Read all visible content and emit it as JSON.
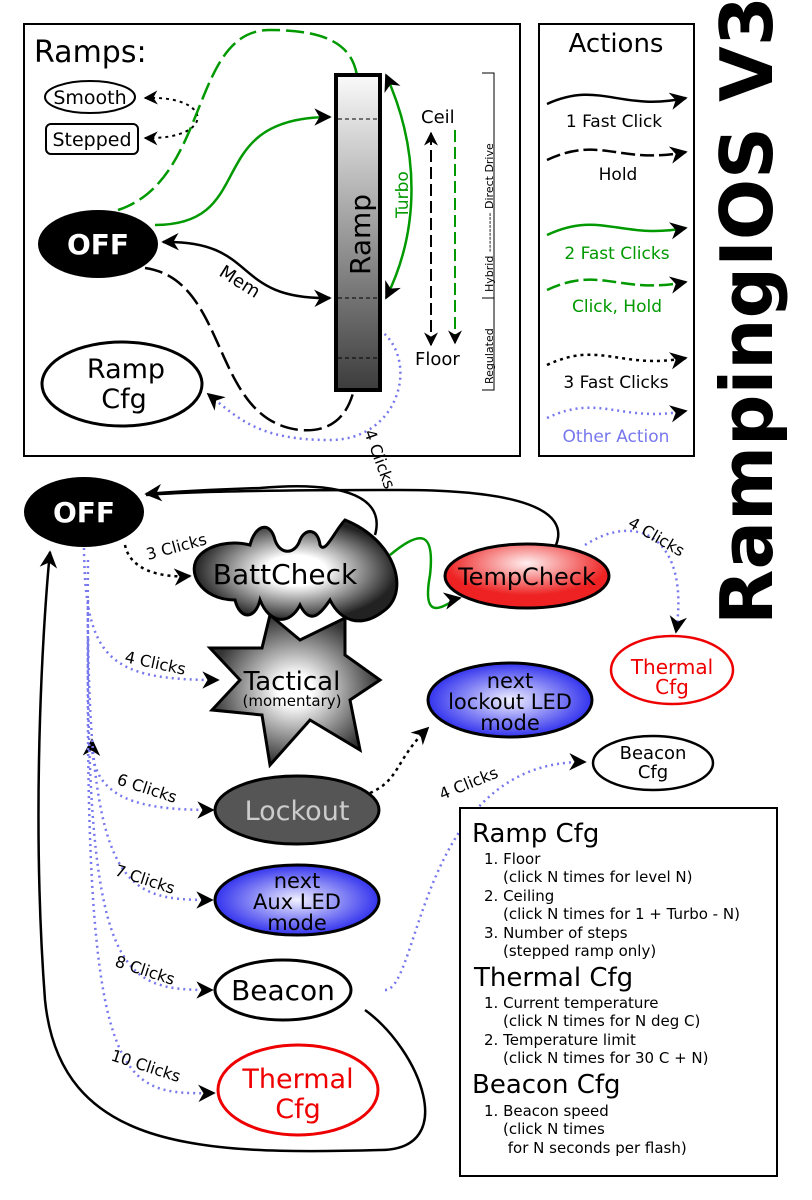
{
  "title": "RampingIOS V3",
  "ramps_panel": {
    "heading": "Ramps:",
    "smooth": "Smooth",
    "stepped": "Stepped",
    "off": "OFF",
    "ramp_cfg_line1": "Ramp",
    "ramp_cfg_line2": "Cfg",
    "ramp": "Ramp",
    "turbo": "Turbo",
    "ceil": "Ceil",
    "floor": "Floor",
    "mem": "Mem",
    "four_clicks": "4 Clicks",
    "regulated": "Regulated",
    "hybrid_direct": "Hybrid ---------- Direct Drive"
  },
  "actions_panel": {
    "heading": "Actions",
    "items": [
      {
        "label": "1 Fast Click",
        "style": "solid",
        "color": "#000000"
      },
      {
        "label": "Hold",
        "style": "dashed",
        "color": "#000000"
      },
      {
        "label": "2 Fast Clicks",
        "style": "solid",
        "color": "#009900"
      },
      {
        "label": "Click, Hold",
        "style": "dashed",
        "color": "#009900"
      },
      {
        "label": "3 Fast Clicks",
        "style": "dotted",
        "color": "#000000"
      },
      {
        "label": "Other Action",
        "style": "dotted",
        "color": "#7777ee"
      }
    ]
  },
  "graph": {
    "off": "OFF",
    "battcheck": "BattCheck",
    "tempcheck": "TempCheck",
    "thermal_cfg_top_1": "Thermal",
    "thermal_cfg_top_2": "Cfg",
    "tactical": "Tactical",
    "tactical_sub": "(momentary)",
    "lockout_led_1": "next",
    "lockout_led_2": "lockout LED",
    "lockout_led_3": "mode",
    "beacon_cfg_1": "Beacon",
    "beacon_cfg_2": "Cfg",
    "lockout": "Lockout",
    "aux_led_1": "next",
    "aux_led_2": "Aux LED",
    "aux_led_3": "mode",
    "beacon": "Beacon",
    "thermal_cfg_1": "Thermal",
    "thermal_cfg_2": "Cfg",
    "edge_3clicks": "3 Clicks",
    "edge_4clicks_tactical": "4 Clicks",
    "edge_4clicks_thermal": "4 Clicks",
    "edge_4clicks_beacon": "4 Clicks",
    "edge_6clicks": "6 Clicks",
    "edge_7clicks": "7 Clicks",
    "edge_8clicks": "8 Clicks",
    "edge_10clicks": "10 Clicks"
  },
  "legend": {
    "ramp_cfg": {
      "heading": "Ramp Cfg",
      "lines": [
        "1. Floor",
        "(click N times for level N)",
        "2. Ceiling",
        "(click N times for 1 + Turbo - N)",
        "3. Number of steps",
        "(stepped ramp only)"
      ]
    },
    "thermal_cfg": {
      "heading": "Thermal Cfg",
      "lines": [
        "1. Current temperature",
        "(click N times for N deg C)",
        "2. Temperature limit",
        "(click N times for 30 C + N)"
      ]
    },
    "beacon_cfg": {
      "heading": "Beacon Cfg",
      "lines": [
        "1. Beacon speed",
        "(click N times",
        " for N seconds per flash)"
      ]
    }
  },
  "colors": {
    "green": "#009900",
    "blue": "#7777ee",
    "red": "#ee0000"
  }
}
